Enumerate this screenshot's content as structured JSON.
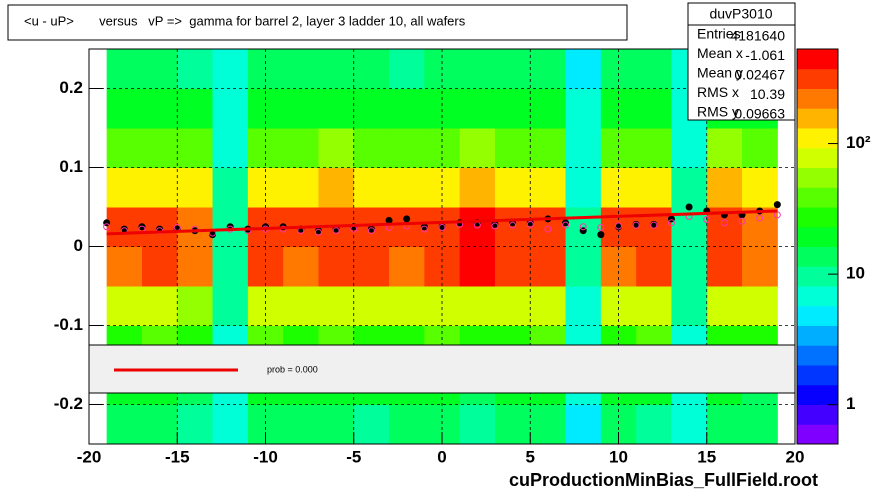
{
  "chart_data": {
    "type": "heatmap",
    "title": "<u - uP>       versus   vP =>  gamma for barrel 2, layer 3 ladder 10, all wafers",
    "footer": "cuProductionMinBias_FullField.root",
    "xlim": [
      -20,
      20
    ],
    "xticks": [
      -20,
      -15,
      -10,
      -5,
      0,
      5,
      10,
      15,
      20
    ],
    "ylim": [
      -0.25,
      0.25
    ],
    "yticks": [
      -0.2,
      -0.1,
      0,
      0.1,
      0.2
    ],
    "zlim": [
      0.5,
      530
    ],
    "zticks": [
      1,
      10,
      {
        "value": 100,
        "label": "10²"
      }
    ],
    "zlog": true,
    "grid": true,
    "xbins": [
      -19,
      -17,
      -15,
      -13,
      -11,
      -9,
      -7,
      -5,
      -3,
      -1,
      1,
      3,
      5,
      7,
      9,
      11,
      13,
      15,
      17,
      19
    ],
    "ybins": [
      -0.25,
      -0.2,
      -0.15,
      -0.1,
      -0.05,
      0,
      0.05,
      0.1,
      0.15,
      0.2,
      0.25
    ],
    "z": [
      [
        12,
        14,
        11,
        6,
        13,
        12,
        14,
        11,
        13,
        12,
        10,
        14,
        12,
        5,
        13,
        11,
        6,
        12,
        14
      ],
      [
        18,
        20,
        16,
        7,
        19,
        17,
        20,
        18,
        17,
        19,
        16,
        18,
        20,
        6,
        17,
        19,
        7,
        18,
        16
      ],
      [
        30,
        35,
        28,
        8,
        33,
        30,
        36,
        32,
        29,
        34,
        30,
        31,
        35,
        7,
        30,
        33,
        8,
        32,
        30
      ],
      [
        70,
        80,
        65,
        9,
        78,
        72,
        85,
        75,
        70,
        82,
        90,
        75,
        80,
        8,
        70,
        75,
        9,
        80,
        70
      ],
      [
        260,
        300,
        240,
        10,
        280,
        250,
        320,
        280,
        260,
        300,
        400,
        330,
        300,
        9,
        250,
        280,
        10,
        300,
        240
      ],
      [
        280,
        320,
        260,
        10,
        300,
        270,
        340,
        300,
        280,
        330,
        450,
        360,
        330,
        9,
        270,
        300,
        10,
        330,
        260
      ],
      [
        110,
        130,
        100,
        9,
        120,
        110,
        140,
        120,
        110,
        130,
        160,
        130,
        125,
        8,
        110,
        120,
        9,
        150,
        110
      ],
      [
        40,
        45,
        38,
        8,
        42,
        40,
        48,
        42,
        40,
        45,
        50,
        44,
        42,
        7,
        40,
        42,
        8,
        48,
        40
      ],
      [
        20,
        22,
        18,
        7,
        21,
        20,
        23,
        21,
        19,
        22,
        20,
        21,
        22,
        6,
        19,
        21,
        7,
        22,
        20
      ],
      [
        12,
        13,
        11,
        6,
        12,
        12,
        14,
        12,
        11,
        13,
        12,
        12,
        13,
        5,
        12,
        12,
        6,
        13,
        12
      ]
    ],
    "series": [
      {
        "name": "profile",
        "color": "#000000",
        "x": [
          -19,
          -18,
          -17,
          -16,
          -15,
          -14,
          -13,
          -12,
          -11,
          -10,
          -9,
          -8,
          -7,
          -6,
          -5,
          -4,
          -3,
          -2,
          -1,
          0,
          1,
          2,
          3,
          4,
          5,
          6,
          7,
          8,
          9,
          10,
          11,
          12,
          13,
          14,
          15,
          16,
          17,
          18,
          19
        ],
        "values": [
          0.03,
          0.022,
          0.025,
          0.022,
          0.022,
          0.02,
          0.015,
          0.025,
          0.022,
          0.025,
          0.025,
          0.022,
          0.02,
          0.022,
          0.025,
          0.022,
          0.033,
          0.035,
          0.025,
          0.025,
          0.03,
          0.03,
          0.028,
          0.03,
          0.03,
          0.035,
          0.03,
          0.02,
          0.015,
          0.025,
          0.028,
          0.028,
          0.035,
          0.05,
          0.045,
          0.04,
          0.04,
          0.045,
          0.053
        ]
      },
      {
        "name": "mean",
        "color": "#ff33aa",
        "x": [
          -19,
          -18,
          -17,
          -16,
          -15,
          -14,
          -13,
          -12,
          -11,
          -10,
          -9,
          -8,
          -7,
          -6,
          -5,
          -4,
          -3,
          -2,
          -1,
          0,
          1,
          2,
          3,
          4,
          5,
          6,
          7,
          8,
          9,
          10,
          11,
          12,
          13,
          14,
          15,
          16,
          17,
          18,
          19
        ],
        "values": [
          0.025,
          0.02,
          0.022,
          0.02,
          0.024,
          0.022,
          0.017,
          0.022,
          0.02,
          0.022,
          0.022,
          0.02,
          0.018,
          0.02,
          0.022,
          0.02,
          0.024,
          0.026,
          0.022,
          0.024,
          0.028,
          0.027,
          0.026,
          0.027,
          0.028,
          0.022,
          0.027,
          0.025,
          0.024,
          0.026,
          0.027,
          0.027,
          0.03,
          0.038,
          0.034,
          0.03,
          0.032,
          0.036,
          0.04
        ]
      },
      {
        "name": "fit",
        "color": "#ee0000",
        "x": [
          -19,
          19
        ],
        "values": [
          0.016,
          0.045
        ]
      }
    ],
    "legend_text": "prob = 0.000",
    "stats": {
      "title": "duvP3010",
      "rows": [
        [
          "Entries",
          "4181640"
        ],
        [
          "Mean x",
          "-1.061"
        ],
        [
          "Mean y",
          "0.02467"
        ],
        [
          "RMS x",
          "10.39"
        ],
        [
          "RMS y",
          "0.09663"
        ]
      ]
    }
  }
}
